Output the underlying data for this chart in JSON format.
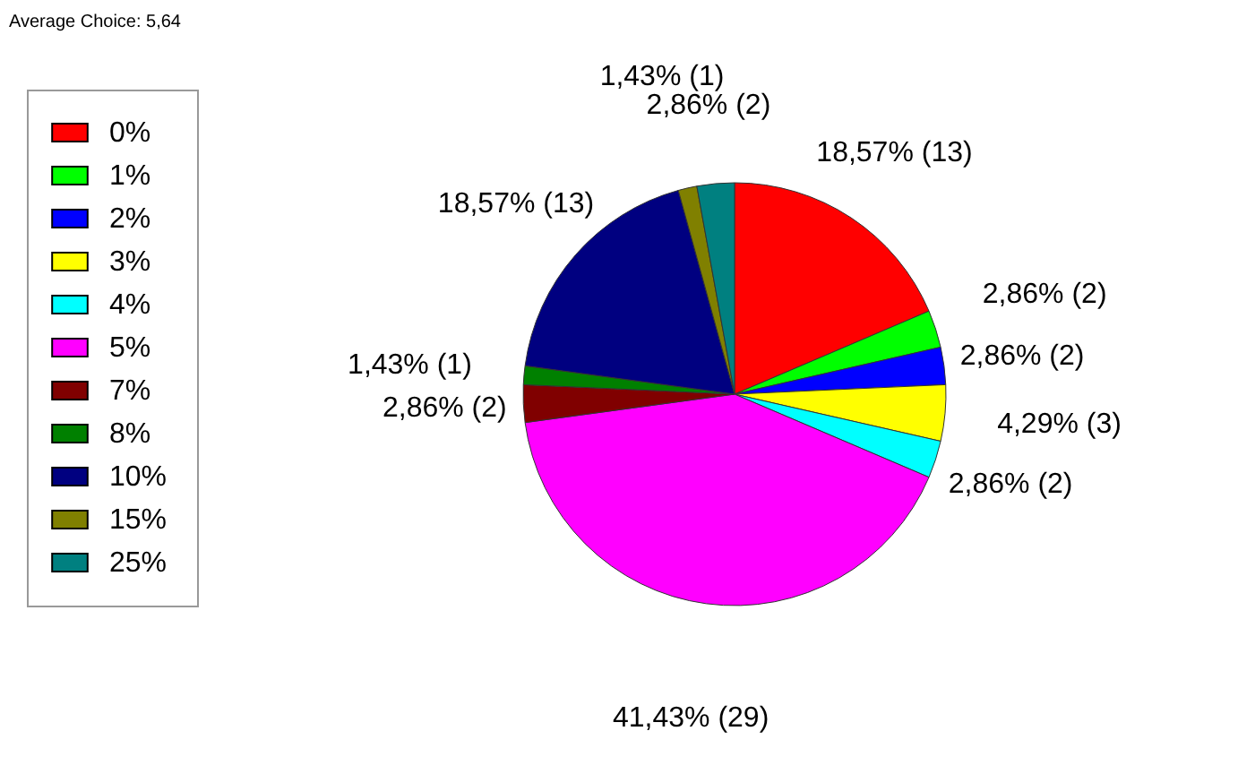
{
  "chart_data": {
    "type": "pie",
    "title": "Average Choice: 5,64",
    "categories": [
      "0%",
      "1%",
      "2%",
      "3%",
      "4%",
      "5%",
      "7%",
      "8%",
      "10%",
      "15%",
      "25%"
    ],
    "values": [
      13,
      2,
      2,
      3,
      2,
      29,
      2,
      1,
      13,
      1,
      2
    ],
    "colors": [
      "#ff0000",
      "#00ff00",
      "#0000ff",
      "#ffff00",
      "#00ffff",
      "#ff00ff",
      "#800000",
      "#008000",
      "#000080",
      "#808000",
      "#008080"
    ],
    "value_labels": [
      "18,57% (13)",
      "2,86% (2)",
      "2,86% (2)",
      "4,29% (3)",
      "2,86% (2)",
      "41,43% (29)",
      "2,86% (2)",
      "1,43% (1)",
      "18,57% (13)",
      "1,43% (1)",
      "2,86% (2)"
    ],
    "legend": "left"
  }
}
